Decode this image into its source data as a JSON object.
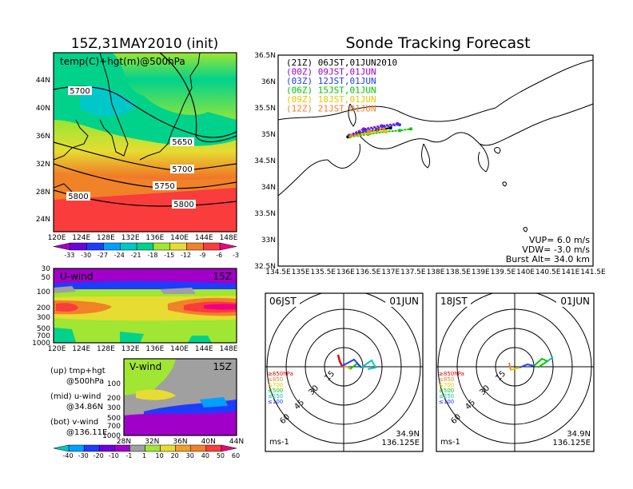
{
  "chart_data": {
    "left_title": "15Z,31MAY2010 (init)",
    "right_title": "Sonde Tracking Forecast",
    "panel_temp": {
      "type": "heatmap",
      "title": "temp(C)+hgt(m)@500hPa",
      "lon_ticks": [
        "120E",
        "124E",
        "128E",
        "132E",
        "136E",
        "140E",
        "144E",
        "148E"
      ],
      "lat_ticks": [
        "44N",
        "40N",
        "36N",
        "32N",
        "28N",
        "24N"
      ],
      "contours": [
        "5700",
        "5650",
        "5700",
        "5750",
        "5800",
        "5800"
      ],
      "colorbar_labels": [
        "-33",
        "-30",
        "-27",
        "-24",
        "-21",
        "-18",
        "-15",
        "-12",
        "-9",
        "-6",
        "-3"
      ],
      "colorbar_colors": [
        "#a000c8",
        "#6e00dc",
        "#1e3cff",
        "#00a0ff",
        "#00c8c8",
        "#00d28c",
        "#a0e632",
        "#e6dc32",
        "#f08228",
        "#fa3c3c",
        "#f00082"
      ]
    },
    "panel_u": {
      "type": "heatmap",
      "title": "U-wind",
      "time": "15Z",
      "y_ticks": [
        "30",
        "50",
        "100",
        "200",
        "300",
        "500",
        "700",
        "1000"
      ],
      "x_ticks": [
        "120E",
        "124E",
        "128E",
        "132E",
        "136E",
        "140E",
        "144E",
        "148E"
      ]
    },
    "panel_v": {
      "type": "heatmap",
      "title": "V-wind",
      "time": "15Z",
      "y_ticks": [
        "100",
        "200",
        "300",
        "500",
        "700",
        "1000"
      ],
      "x_ticks": [
        "28N",
        "32N",
        "36N",
        "40N",
        "44N"
      ]
    },
    "legend_notes": [
      {
        "line1": "(up) tmp+hgt",
        "line2": "@500hPa"
      },
      {
        "line1": "(mid) u-wind",
        "line2": "@34.86N"
      },
      {
        "line1": "(bot) v-wind",
        "line2": "@136.11E"
      }
    ],
    "wind_colorbar": {
      "labels": [
        "-40",
        "-30",
        "-20",
        "-10",
        "-1",
        "1",
        "10",
        "20",
        "30",
        "40",
        "50",
        "60"
      ],
      "colors": [
        "#00c8c8",
        "#00a0ff",
        "#1e3cff",
        "#6e00dc",
        "#a000c8",
        "#a0a0a0",
        "#a0e632",
        "#e6dc32",
        "#f0a028",
        "#f08228",
        "#fa3c3c",
        "#f00082"
      ]
    },
    "track_map": {
      "type": "line",
      "x_ticks": [
        "134.5E",
        "135E",
        "135.5E",
        "136E",
        "136.5E",
        "137E",
        "137.5E",
        "138E",
        "138.5E",
        "139E",
        "139.5E",
        "140E",
        "140.5E",
        "141E",
        "141.5E"
      ],
      "y_ticks": [
        "36.5N",
        "36N",
        "35.5N",
        "35N",
        "34.5N",
        "34N",
        "33.5N",
        "33N",
        "32.5N"
      ],
      "xlim": [
        134.5,
        141.5
      ],
      "ylim": [
        32.5,
        36.5
      ],
      "series": [
        {
          "name": "(21Z)  06JST,01JUN2010",
          "color": "#000000",
          "points": [
            [
              136.05,
              34.95
            ],
            [
              136.3,
              35.02
            ],
            [
              136.7,
              35.08
            ],
            [
              137.0,
              35.12
            ]
          ]
        },
        {
          "name": "(00Z)  09JST,01JUN",
          "color": "#a000c8",
          "points": [
            [
              136.08,
              34.98
            ],
            [
              136.4,
              35.1
            ],
            [
              136.8,
              35.16
            ],
            [
              137.15,
              35.2
            ]
          ]
        },
        {
          "name": "(03Z)  12JST,01JUN",
          "color": "#1e3cff",
          "points": [
            [
              136.1,
              34.97
            ],
            [
              136.45,
              35.08
            ],
            [
              136.85,
              35.14
            ],
            [
              137.2,
              35.18
            ]
          ]
        },
        {
          "name": "(06Z)  15JST,01JUN",
          "color": "#00c800",
          "points": [
            [
              136.1,
              34.95
            ],
            [
              136.5,
              35.0
            ],
            [
              136.9,
              35.05
            ],
            [
              137.2,
              35.07
            ],
            [
              137.45,
              35.1
            ]
          ]
        },
        {
          "name": "(09Z)  18JST,01JUN",
          "color": "#e6c800",
          "points": [
            [
              136.12,
              34.96
            ],
            [
              136.5,
              35.02
            ],
            [
              136.9,
              35.06
            ]
          ]
        },
        {
          "name": "(12Z)  21JST,01JUN",
          "color": "#f08228",
          "points": [
            [
              136.12,
              34.97
            ],
            [
              136.5,
              35.05
            ],
            [
              136.85,
              35.1
            ]
          ]
        }
      ],
      "annotations": [
        "VUP=  6.0  m/s",
        "VDW= -3.0  m/s",
        "Burst Alt= 34.0  km"
      ]
    },
    "hodographs": [
      {
        "time": "06JST",
        "date": "01JUN",
        "ring_labels": [
          "15",
          "30",
          "45",
          "60"
        ],
        "unit": "ms-1",
        "lat": "34.9N",
        "lon": "136.125E",
        "levels": [
          {
            "label": "≥850hPa",
            "color": "#e60000"
          },
          {
            "label": "≤850",
            "color": "#f08228"
          },
          {
            "label": "≤700",
            "color": "#e6c800"
          },
          {
            "label": "≤500",
            "color": "#00c800"
          },
          {
            "label": "≤250",
            "color": "#00c8c8"
          },
          {
            "label": "≤100",
            "color": "#1e3cff"
          }
        ]
      },
      {
        "time": "18JST",
        "date": "01JUN",
        "ring_labels": [
          "15",
          "30",
          "45",
          "60"
        ],
        "unit": "ms-1",
        "lat": "34.9N",
        "lon": "136.125E",
        "levels": [
          {
            "label": "≥850hPa",
            "color": "#e60000"
          },
          {
            "label": "≤850",
            "color": "#f08228"
          },
          {
            "label": "≤700",
            "color": "#e6c800"
          },
          {
            "label": "≤500",
            "color": "#00c800"
          },
          {
            "label": "≤250",
            "color": "#00c8c8"
          },
          {
            "label": "≤100",
            "color": "#1e3cff"
          }
        ]
      }
    ]
  }
}
